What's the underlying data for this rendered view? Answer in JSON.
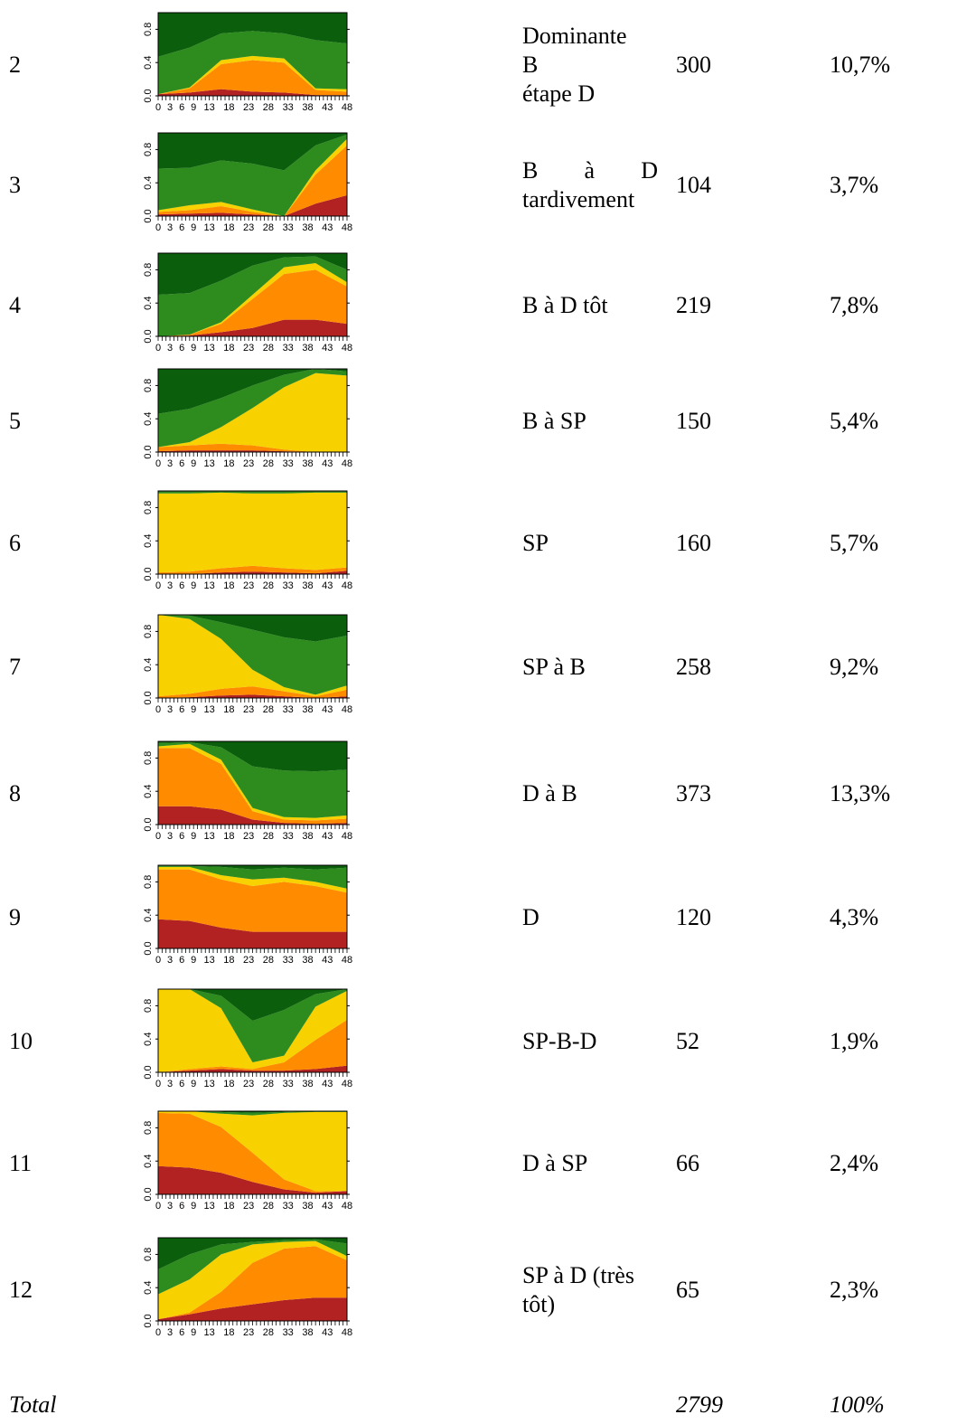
{
  "palette": {
    "dark_green": "#0b5e0b",
    "green": "#2e8b1e",
    "yellow": "#f7d100",
    "orange": "#ff8c00",
    "red": "#b22222"
  },
  "y_ticks": [
    "0.0",
    "0.4",
    "0.8"
  ],
  "x_ticks": [
    "0",
    "3",
    "6",
    "9",
    "13",
    "18",
    "23",
    "28",
    "33",
    "38",
    "43",
    "48"
  ],
  "rows": [
    {
      "id": "2",
      "label_lines": [
        "Dominante",
        "B",
        "étape D"
      ],
      "count": "300",
      "pct": "10,7%"
    },
    {
      "id": "3",
      "label_lines": [
        "B à D",
        "tardivement"
      ],
      "justify_first": [
        "B",
        "à",
        "D"
      ],
      "count": "104",
      "pct": "3,7%"
    },
    {
      "id": "4",
      "label_lines": [
        "B à D tôt"
      ],
      "count": "219",
      "pct": "7,8%"
    },
    {
      "id": "5",
      "label_lines": [
        "B à SP"
      ],
      "count": "150",
      "pct": "5,4%"
    },
    {
      "id": "6",
      "label_lines": [
        "SP"
      ],
      "count": "160",
      "pct": "5,7%"
    },
    {
      "id": "7",
      "label_lines": [
        "SP à B"
      ],
      "count": "258",
      "pct": "9,2%"
    },
    {
      "id": "8",
      "label_lines": [
        "D à B"
      ],
      "count": "373",
      "pct": "13,3%"
    },
    {
      "id": "9",
      "label_lines": [
        "D"
      ],
      "count": "120",
      "pct": "4,3%"
    },
    {
      "id": "10",
      "label_lines": [
        "SP-B-D"
      ],
      "count": "52",
      "pct": "1,9%"
    },
    {
      "id": "11",
      "label_lines": [
        "D à SP"
      ],
      "count": "66",
      "pct": "2,4%"
    },
    {
      "id": "12",
      "label_lines": [
        "SP à D (très",
        "tôt)"
      ],
      "count": "65",
      "pct": "2,3%"
    }
  ],
  "total": {
    "label": "Total",
    "count": "2799",
    "pct": "100%"
  },
  "chart_data": [
    {
      "type": "area",
      "cluster": "2",
      "x": [
        0,
        8,
        16,
        24,
        32,
        40,
        48
      ],
      "series": [
        {
          "name": "",
          "values": [
            0.02,
            0.04,
            0.08,
            0.05,
            0.04,
            0.01,
            0.01
          ]
        },
        {
          "name": "",
          "values": [
            0.0,
            0.05,
            0.3,
            0.38,
            0.36,
            0.06,
            0.04
          ]
        },
        {
          "name": "",
          "values": [
            0.0,
            0.01,
            0.05,
            0.05,
            0.05,
            0.02,
            0.03
          ]
        },
        {
          "name": "",
          "values": [
            0.45,
            0.48,
            0.32,
            0.3,
            0.3,
            0.58,
            0.55
          ]
        },
        {
          "name": "",
          "values": [
            0.53,
            0.42,
            0.25,
            0.22,
            0.25,
            0.33,
            0.37
          ]
        }
      ]
    },
    {
      "type": "area",
      "cluster": "3",
      "x": [
        0,
        8,
        16,
        24,
        32,
        40,
        48
      ],
      "series": [
        {
          "name": "",
          "values": [
            0.02,
            0.03,
            0.04,
            0.02,
            0.0,
            0.15,
            0.25
          ]
        },
        {
          "name": "",
          "values": [
            0.03,
            0.04,
            0.08,
            0.03,
            0.0,
            0.35,
            0.6
          ]
        },
        {
          "name": "",
          "values": [
            0.02,
            0.06,
            0.05,
            0.03,
            0.0,
            0.05,
            0.08
          ]
        },
        {
          "name": "",
          "values": [
            0.5,
            0.45,
            0.5,
            0.55,
            0.55,
            0.3,
            0.05
          ]
        },
        {
          "name": "",
          "values": [
            0.43,
            0.42,
            0.33,
            0.37,
            0.45,
            0.15,
            0.02
          ]
        }
      ]
    },
    {
      "type": "area",
      "cluster": "4",
      "x": [
        0,
        8,
        16,
        24,
        32,
        40,
        48
      ],
      "series": [
        {
          "name": "",
          "values": [
            0.0,
            0.01,
            0.05,
            0.1,
            0.2,
            0.2,
            0.15
          ]
        },
        {
          "name": "",
          "values": [
            0.0,
            0.01,
            0.1,
            0.35,
            0.55,
            0.6,
            0.45
          ]
        },
        {
          "name": "",
          "values": [
            0.0,
            0.0,
            0.02,
            0.05,
            0.08,
            0.08,
            0.05
          ]
        },
        {
          "name": "",
          "values": [
            0.5,
            0.5,
            0.5,
            0.35,
            0.12,
            0.08,
            0.15
          ]
        },
        {
          "name": "",
          "values": [
            0.5,
            0.48,
            0.33,
            0.15,
            0.05,
            0.04,
            0.2
          ]
        }
      ]
    },
    {
      "type": "area",
      "cluster": "5",
      "x": [
        0,
        8,
        16,
        24,
        32,
        40,
        48
      ],
      "series": [
        {
          "name": "",
          "values": [
            0.01,
            0.02,
            0.02,
            0.02,
            0.01,
            0.0,
            0.0
          ]
        },
        {
          "name": "",
          "values": [
            0.05,
            0.06,
            0.08,
            0.06,
            0.02,
            0.0,
            0.0
          ]
        },
        {
          "name": "",
          "values": [
            0.0,
            0.04,
            0.2,
            0.45,
            0.75,
            0.95,
            0.92
          ]
        },
        {
          "name": "",
          "values": [
            0.4,
            0.4,
            0.35,
            0.27,
            0.15,
            0.05,
            0.05
          ]
        },
        {
          "name": "",
          "values": [
            0.54,
            0.48,
            0.35,
            0.2,
            0.07,
            0.0,
            0.03
          ]
        }
      ]
    },
    {
      "type": "area",
      "cluster": "6",
      "x": [
        0,
        8,
        16,
        24,
        32,
        40,
        48
      ],
      "series": [
        {
          "name": "",
          "values": [
            0.0,
            0.0,
            0.02,
            0.03,
            0.02,
            0.01,
            0.04
          ]
        },
        {
          "name": "",
          "values": [
            0.02,
            0.03,
            0.05,
            0.07,
            0.05,
            0.04,
            0.04
          ]
        },
        {
          "name": "",
          "values": [
            0.95,
            0.94,
            0.91,
            0.87,
            0.9,
            0.93,
            0.9
          ]
        },
        {
          "name": "",
          "values": [
            0.02,
            0.02,
            0.01,
            0.02,
            0.02,
            0.01,
            0.01
          ]
        },
        {
          "name": "",
          "values": [
            0.01,
            0.01,
            0.01,
            0.01,
            0.01,
            0.01,
            0.01
          ]
        }
      ]
    },
    {
      "type": "area",
      "cluster": "7",
      "x": [
        0,
        8,
        16,
        24,
        32,
        40,
        48
      ],
      "series": [
        {
          "name": "",
          "values": [
            0.0,
            0.01,
            0.03,
            0.04,
            0.02,
            0.0,
            0.02
          ]
        },
        {
          "name": "",
          "values": [
            0.02,
            0.04,
            0.08,
            0.1,
            0.06,
            0.02,
            0.08
          ]
        },
        {
          "name": "",
          "values": [
            0.98,
            0.9,
            0.6,
            0.2,
            0.05,
            0.02,
            0.05
          ]
        },
        {
          "name": "",
          "values": [
            0.0,
            0.04,
            0.2,
            0.48,
            0.6,
            0.64,
            0.6
          ]
        },
        {
          "name": "",
          "values": [
            0.0,
            0.01,
            0.09,
            0.18,
            0.27,
            0.32,
            0.25
          ]
        }
      ]
    },
    {
      "type": "area",
      "cluster": "8",
      "x": [
        0,
        8,
        16,
        24,
        32,
        40,
        48
      ],
      "series": [
        {
          "name": "",
          "values": [
            0.22,
            0.22,
            0.18,
            0.06,
            0.02,
            0.01,
            0.02
          ]
        },
        {
          "name": "",
          "values": [
            0.7,
            0.7,
            0.55,
            0.1,
            0.04,
            0.04,
            0.05
          ]
        },
        {
          "name": "",
          "values": [
            0.02,
            0.05,
            0.05,
            0.04,
            0.03,
            0.03,
            0.04
          ]
        },
        {
          "name": "",
          "values": [
            0.04,
            0.02,
            0.15,
            0.5,
            0.56,
            0.56,
            0.55
          ]
        },
        {
          "name": "",
          "values": [
            0.02,
            0.01,
            0.07,
            0.3,
            0.35,
            0.36,
            0.34
          ]
        }
      ]
    },
    {
      "type": "area",
      "cluster": "9",
      "x": [
        0,
        8,
        16,
        24,
        32,
        40,
        48
      ],
      "series": [
        {
          "name": "",
          "values": [
            0.35,
            0.33,
            0.25,
            0.2,
            0.2,
            0.2,
            0.2
          ]
        },
        {
          "name": "",
          "values": [
            0.6,
            0.62,
            0.58,
            0.55,
            0.6,
            0.55,
            0.47
          ]
        },
        {
          "name": "",
          "values": [
            0.03,
            0.03,
            0.05,
            0.08,
            0.05,
            0.05,
            0.05
          ]
        },
        {
          "name": "",
          "values": [
            0.01,
            0.01,
            0.1,
            0.12,
            0.12,
            0.15,
            0.25
          ]
        },
        {
          "name": "",
          "values": [
            0.01,
            0.01,
            0.02,
            0.05,
            0.03,
            0.05,
            0.03
          ]
        }
      ]
    },
    {
      "type": "area",
      "cluster": "10",
      "x": [
        0,
        8,
        16,
        24,
        32,
        40,
        48
      ],
      "series": [
        {
          "name": "",
          "values": [
            0.0,
            0.02,
            0.04,
            0.02,
            0.02,
            0.04,
            0.08
          ]
        },
        {
          "name": "",
          "values": [
            0.0,
            0.02,
            0.03,
            0.02,
            0.1,
            0.35,
            0.55
          ]
        },
        {
          "name": "",
          "values": [
            1.0,
            0.96,
            0.7,
            0.08,
            0.08,
            0.4,
            0.35
          ]
        },
        {
          "name": "",
          "values": [
            0.0,
            0.0,
            0.15,
            0.5,
            0.55,
            0.15,
            0.02
          ]
        },
        {
          "name": "",
          "values": [
            0.0,
            0.0,
            0.08,
            0.38,
            0.25,
            0.06,
            0.0
          ]
        }
      ]
    },
    {
      "type": "area",
      "cluster": "11",
      "x": [
        0,
        8,
        16,
        24,
        32,
        40,
        48
      ],
      "series": [
        {
          "name": "",
          "values": [
            0.34,
            0.32,
            0.26,
            0.15,
            0.06,
            0.02,
            0.04
          ]
        },
        {
          "name": "",
          "values": [
            0.64,
            0.65,
            0.55,
            0.35,
            0.12,
            0.02,
            0.0
          ]
        },
        {
          "name": "",
          "values": [
            0.02,
            0.03,
            0.16,
            0.45,
            0.8,
            0.95,
            0.95
          ]
        },
        {
          "name": "",
          "values": [
            0.0,
            0.0,
            0.02,
            0.03,
            0.01,
            0.01,
            0.01
          ]
        },
        {
          "name": "",
          "values": [
            0.0,
            0.0,
            0.01,
            0.02,
            0.01,
            0.0,
            0.0
          ]
        }
      ]
    },
    {
      "type": "area",
      "cluster": "12",
      "x": [
        0,
        8,
        16,
        24,
        32,
        40,
        48
      ],
      "series": [
        {
          "name": "",
          "values": [
            0.02,
            0.08,
            0.15,
            0.2,
            0.25,
            0.28,
            0.28
          ]
        },
        {
          "name": "",
          "values": [
            0.0,
            0.02,
            0.2,
            0.5,
            0.62,
            0.62,
            0.45
          ]
        },
        {
          "name": "",
          "values": [
            0.3,
            0.4,
            0.45,
            0.22,
            0.08,
            0.06,
            0.05
          ]
        },
        {
          "name": "",
          "values": [
            0.3,
            0.3,
            0.12,
            0.03,
            0.02,
            0.02,
            0.15
          ]
        },
        {
          "name": "",
          "values": [
            0.38,
            0.2,
            0.08,
            0.05,
            0.03,
            0.02,
            0.07
          ]
        }
      ]
    }
  ]
}
